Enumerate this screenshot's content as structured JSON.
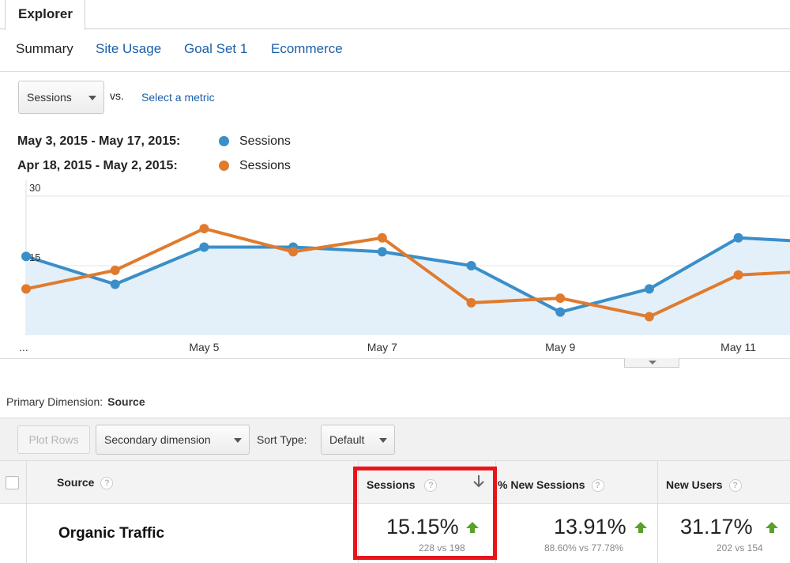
{
  "tabs": {
    "explorer": "Explorer"
  },
  "subtabs": [
    {
      "label": "Summary",
      "active": true
    },
    {
      "label": "Site Usage",
      "active": false
    },
    {
      "label": "Goal Set 1",
      "active": false
    },
    {
      "label": "Ecommerce",
      "active": false
    }
  ],
  "metric_selector": {
    "selected": "Sessions",
    "vs": "vs.",
    "select_metric": "Select a metric"
  },
  "legend": [
    {
      "date_range": "May 3, 2015 - May 17, 2015:",
      "metric": "Sessions",
      "color": "#3a8fc9"
    },
    {
      "date_range": "Apr 18, 2015 - May 2, 2015:",
      "metric": "Sessions",
      "color": "#e07b2e"
    }
  ],
  "chart_data": {
    "type": "line",
    "y_tick_labels": [
      "30",
      "15"
    ],
    "ylim": [
      0,
      30
    ],
    "x_tick_labels": [
      "...",
      "May 5",
      "May 7",
      "May 9",
      "May 11"
    ],
    "grid": true,
    "series": [
      {
        "name": "Sessions",
        "values": [
          17,
          11,
          19,
          19,
          18,
          15,
          5,
          10,
          21,
          20
        ],
        "color": "#3a8fc9"
      },
      {
        "name": "Sessions",
        "values": [
          10,
          14,
          23,
          18,
          21,
          7,
          8,
          4,
          13,
          14
        ],
        "color": "#e07b2e"
      }
    ]
  },
  "primary_dimension": {
    "label": "Primary Dimension:",
    "value": "Source"
  },
  "toolbar": {
    "plot_rows": "Plot Rows",
    "secondary_dimension": "Secondary dimension",
    "sort_type_label": "Sort Type:",
    "sort_type_value": "Default"
  },
  "table": {
    "headers": {
      "source": "Source",
      "sessions": "Sessions",
      "new_sessions": "% New Sessions",
      "new_users": "New Users"
    },
    "row": {
      "source": "Organic Traffic",
      "sessions": {
        "pct": "15.15%",
        "compare": "228 vs 198"
      },
      "new_sessions": {
        "pct": "13.91%",
        "compare": "88.60% vs 77.78%"
      },
      "new_users": {
        "pct": "31.17%",
        "compare": "202 vs 154"
      }
    }
  },
  "colors": {
    "link": "#1a5fa8",
    "up": "#5aa02c",
    "highlight": "#e8141b"
  }
}
